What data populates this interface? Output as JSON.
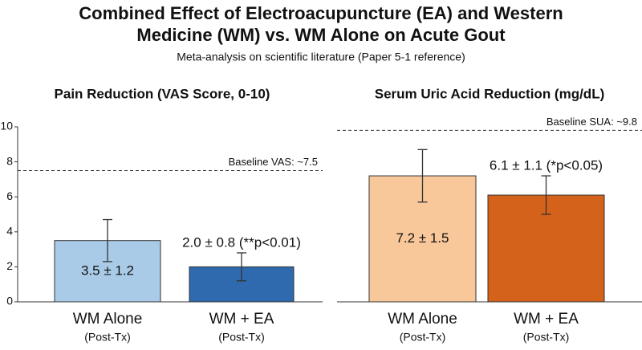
{
  "title": [
    "Combined Effect of Electroacupuncture (EA) and Western",
    "Medicine (WM) vs. WM Alone on Acute Gout"
  ],
  "subtitle": "Meta-analysis on scientific literature (Paper 5-1 reference)",
  "chart_data": [
    {
      "type": "bar",
      "title": "Pain Reduction (VAS Score, 0-10)",
      "categories": [
        "WM Alone",
        "WM + EA"
      ],
      "category_sublabels": [
        "(Post-Tx)",
        "(Post-Tx)"
      ],
      "values": [
        3.5,
        2.0
      ],
      "errors": [
        1.2,
        0.8
      ],
      "value_labels": [
        "3.5 ± 1.2",
        "2.0 ± 0.8 (**p<0.01)"
      ],
      "value_label_positions": [
        "inside",
        "above"
      ],
      "colors": [
        "#a9cbe8",
        "#2e6aad"
      ],
      "ylim": [
        0,
        10
      ],
      "yticks": [
        0,
        2,
        4,
        6,
        8,
        10
      ],
      "y_axis_line": true,
      "reference_line": {
        "value": 7.5,
        "label": "Baseline VAS: ~7.5"
      }
    },
    {
      "type": "bar",
      "title": "Serum Uric Acid Reduction (mg/dL)",
      "categories": [
        "WM Alone",
        "WM + EA"
      ],
      "category_sublabels": [
        "(Post-Tx)",
        "(Post-Tx)"
      ],
      "values": [
        7.2,
        6.1
      ],
      "errors": [
        1.5,
        1.1
      ],
      "value_labels": [
        "7.2 ± 1.5",
        "6.1 ± 1.1 (*p<0.05)"
      ],
      "value_label_positions": [
        "inside",
        "above"
      ],
      "colors": [
        "#f8c89a",
        "#d4621a"
      ],
      "ylim": [
        0,
        10
      ],
      "y_axis_line": false,
      "reference_line": {
        "value": 9.8,
        "label": "Baseline SUA: ~9.8"
      }
    }
  ]
}
